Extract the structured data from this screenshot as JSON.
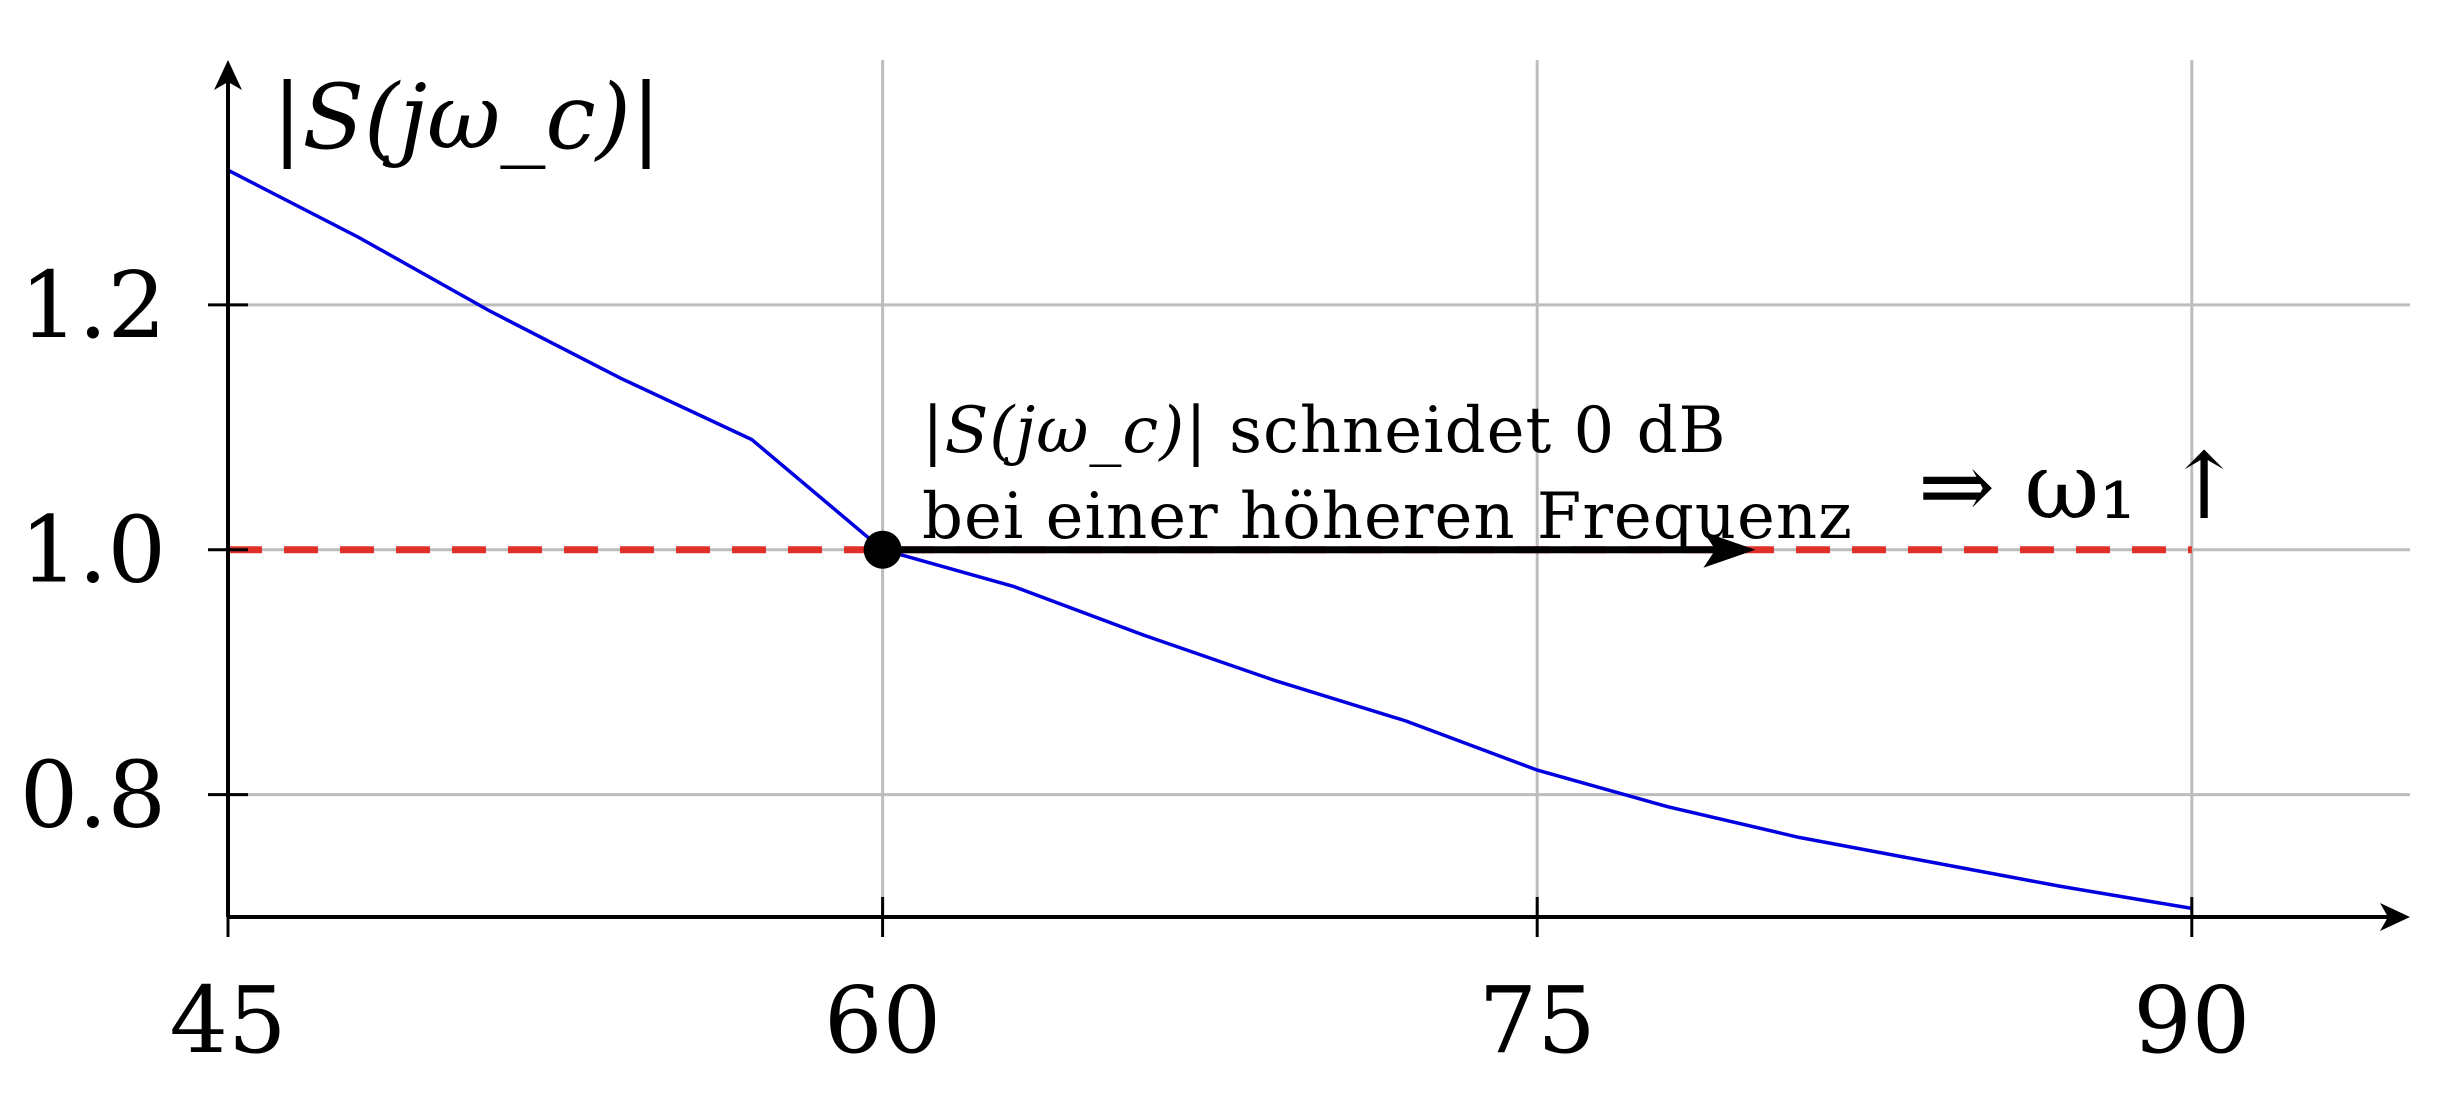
{
  "chart_data": {
    "type": "line",
    "ylabel": "|S(jω_c)|",
    "xlabel": "",
    "xlim": [
      45,
      95
    ],
    "ylim": [
      0.7,
      1.4
    ],
    "x_ticks": [
      "45",
      "60",
      "75",
      "90"
    ],
    "y_ticks": [
      "0.8",
      "1.0",
      "1.2"
    ],
    "grid": true,
    "series": [
      {
        "color": "#0000e0",
        "x": [
          45,
          48,
          51,
          54,
          57,
          60,
          63,
          66,
          69,
          72,
          75,
          78,
          81,
          84,
          87,
          90
        ],
        "y": [
          1.31,
          1.255,
          1.195,
          1.14,
          1.09,
          1.0,
          0.97,
          0.93,
          0.893,
          0.86,
          0.82,
          0.79,
          0.765,
          0.745,
          0.725,
          0.707
        ]
      }
    ],
    "reference_line": {
      "y": 1.0,
      "x_range": [
        45,
        90
      ],
      "color": "#e0302a",
      "style": "dashed"
    },
    "marker": {
      "x": 60,
      "y": 1.0
    },
    "arrow": {
      "from": [
        60,
        1.0
      ],
      "to": [
        80,
        1.0
      ]
    },
    "annotations": {
      "line1_math": "|S(jω_c)|",
      "line1_text": " schneidet 0 dB",
      "line2_text": "bei einer höheren Frequenz",
      "implies": "⇒ ω₁ ↑"
    }
  }
}
